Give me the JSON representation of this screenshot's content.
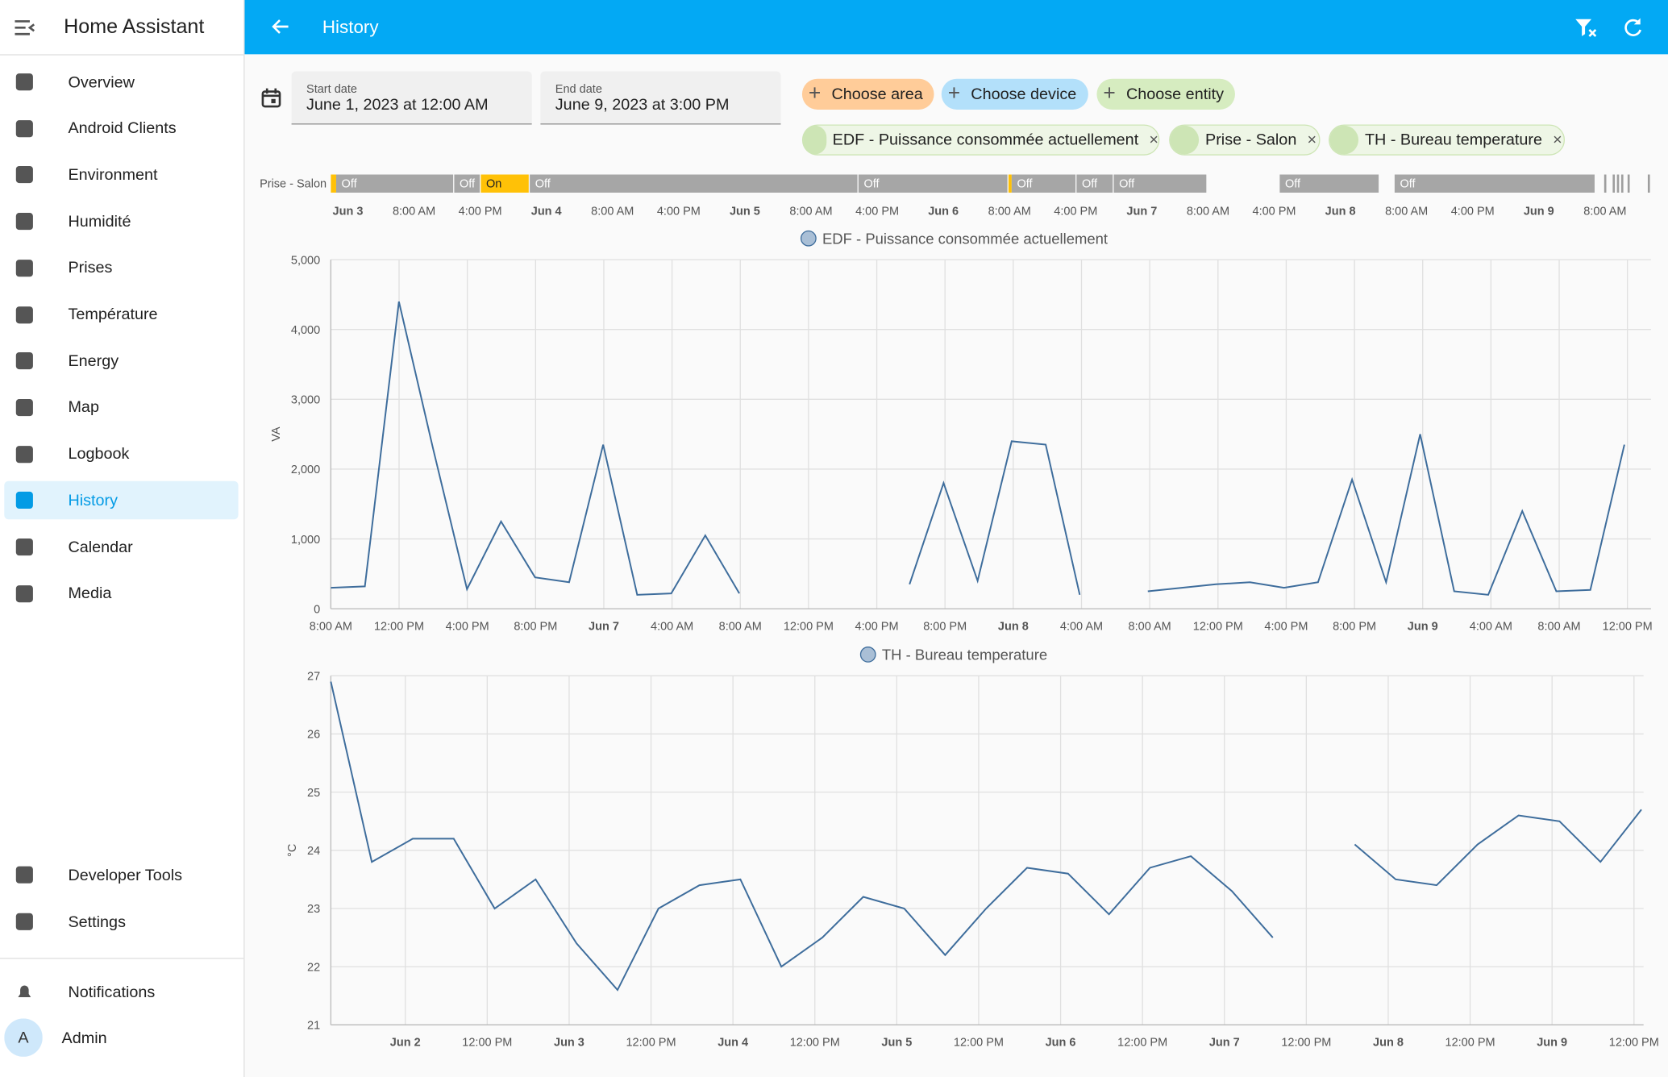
{
  "sidebar": {
    "title": "Home Assistant",
    "items": [
      "Overview",
      "Android Clients",
      "Environment",
      "Humidité",
      "Prises",
      "Température",
      "Energy",
      "Map",
      "Logbook",
      "History",
      "Calendar",
      "Media"
    ],
    "bottom_items": [
      "Developer Tools",
      "Settings"
    ],
    "notifications": "Notifications",
    "user": {
      "initial": "A",
      "name": "Admin"
    }
  },
  "header": {
    "title": "History"
  },
  "filters": {
    "start_label": "Start date",
    "start_value": "June 1, 2023 at 12:00 AM",
    "end_label": "End date",
    "end_value": "June 9, 2023 at 3:00 PM",
    "choose": [
      "Choose area",
      "Choose device",
      "Choose entity"
    ],
    "selected": [
      "EDF - Puissance consommée actuellement",
      "Prise - Salon",
      "TH - Bureau temperature"
    ]
  },
  "timeline": {
    "label": "Prise - Salon",
    "segments": [
      "Off",
      "Off",
      "On",
      "Off",
      "Off",
      "Off",
      "Off",
      "Off",
      "Off",
      "Off"
    ],
    "xtick_labels": [
      "Jun 3",
      "8:00 AM",
      "4:00 PM",
      "Jun 4",
      "8:00 AM",
      "4:00 PM",
      "Jun 5",
      "8:00 AM",
      "4:00 PM",
      "Jun 6",
      "8:00 AM",
      "4:00 PM",
      "Jun 7",
      "8:00 AM",
      "4:00 PM",
      "Jun 8",
      "8:00 AM",
      "4:00 PM",
      "Jun 9",
      "8:00 AM"
    ]
  },
  "chart_data": [
    {
      "type": "line",
      "ylabel": "VA",
      "ylim": [
        0,
        5000
      ],
      "yticks": [
        0,
        {
          "value": 1000,
          "label": "1,000"
        },
        {
          "value": 2000,
          "label": "2,000"
        },
        {
          "value": 3000,
          "label": "3,000"
        },
        {
          "value": 4000,
          "label": "4,000"
        },
        {
          "value": 5000,
          "label": "5,000"
        }
      ],
      "xtick_labels": [
        "8:00 AM",
        "12:00 PM",
        "4:00 PM",
        "8:00 PM",
        "Jun 7",
        "4:00 AM",
        "8:00 AM",
        "12:00 PM",
        "4:00 PM",
        "8:00 PM",
        "Jun 8",
        "4:00 AM",
        "8:00 AM",
        "12:00 PM",
        "4:00 PM",
        "8:00 PM",
        "Jun 9",
        "4:00 AM",
        "8:00 AM",
        "12:00 PM"
      ],
      "grid": true,
      "series": [
        {
          "name": "EDF - Puissance consommée actuellement",
          "color": "#3e6d9c",
          "values": [
            300,
            320,
            4400,
            2300,
            280,
            1250,
            450,
            380,
            2350,
            200,
            220,
            1050,
            220,
            null,
            null,
            null,
            null,
            350,
            1800,
            400,
            2400,
            2350,
            200,
            null,
            250,
            300,
            350,
            380,
            300,
            380,
            1850,
            380,
            2500,
            250,
            200,
            1400,
            250,
            270,
            2350
          ]
        }
      ]
    },
    {
      "type": "line",
      "ylabel": "°C",
      "ylim": [
        21,
        27
      ],
      "yticks": [
        21,
        22,
        23,
        24,
        25,
        26,
        27
      ],
      "xtick_labels": [
        "Jun 2",
        "12:00 PM",
        "Jun 3",
        "12:00 PM",
        "Jun 4",
        "12:00 PM",
        "Jun 5",
        "12:00 PM",
        "Jun 6",
        "12:00 PM",
        "Jun 7",
        "12:00 PM",
        "Jun 8",
        "12:00 PM",
        "Jun 9",
        "12:00 PM"
      ],
      "grid": true,
      "series": [
        {
          "name": "TH - Bureau temperature",
          "color": "#3e6d9c",
          "values": [
            26.9,
            23.8,
            24.2,
            24.2,
            23.0,
            23.5,
            22.4,
            21.6,
            23.0,
            23.4,
            23.5,
            22.0,
            22.5,
            23.2,
            23.0,
            22.2,
            23.0,
            23.7,
            23.6,
            22.9,
            23.7,
            23.9,
            23.3,
            22.5,
            null,
            24.1,
            23.5,
            23.4,
            24.1,
            24.6,
            24.5,
            23.8,
            24.7
          ]
        }
      ]
    }
  ]
}
